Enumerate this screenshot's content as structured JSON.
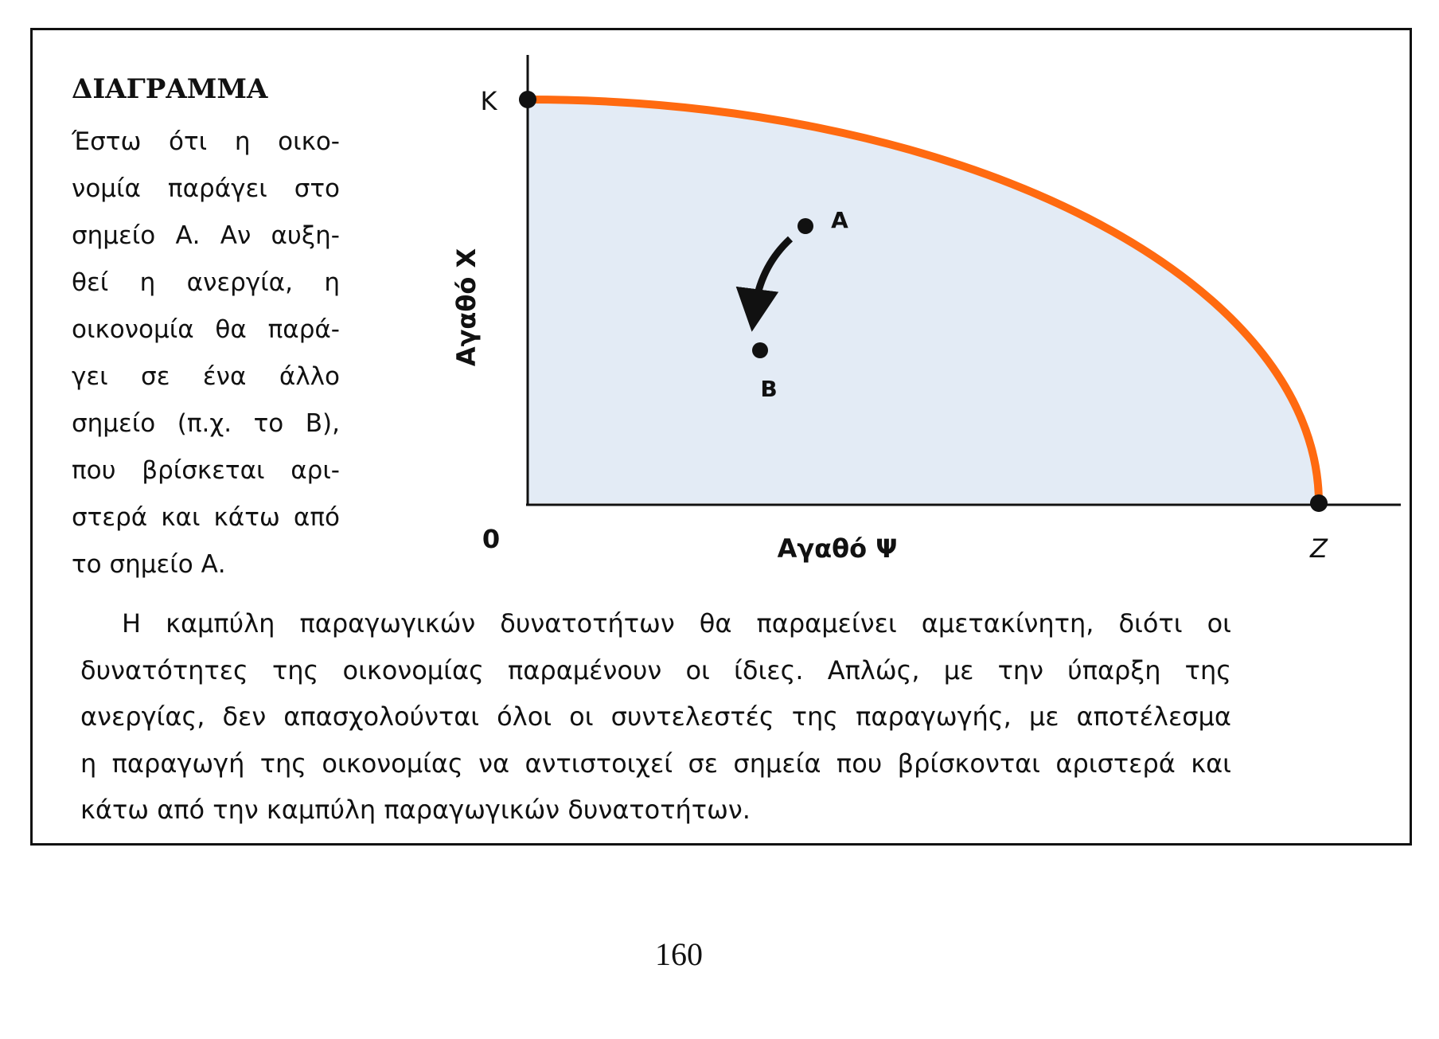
{
  "heading": "ΔΙΑΓΡΑΜΜΑ",
  "side_text": [
    "Έστω ότι η οικο-",
    "νομία παράγει στο",
    "σημείο Α. Αν αυξη-",
    "θεί η ανεργία, η",
    "οικονομία θα παρά-",
    "γει σε ένα άλλο",
    "σημείο (π.χ. το Β),",
    "που βρίσκεται αρι-",
    "στερά και κάτω από",
    "το σημείο Α."
  ],
  "diagram": {
    "y_axis_label": "Αγαθό Χ",
    "x_axis_label": "Αγαθό Ψ",
    "origin": "0",
    "point_k": "K",
    "point_z": "Z",
    "point_a": "A",
    "point_b": "B"
  },
  "body_text": [
    "Η καμπύλη παραγωγικών δυνατοτήτων θα παραμείνει αμετακίνητη, διότι οι",
    "δυνατότητες της οικονομίας παραμένουν οι ίδιες. Απλώς, με την ύπαρξη της",
    "ανεργίας, δεν απασχολούνται όλοι οι συντελεστές της παραγωγής, με αποτέλεσμα",
    "η παραγωγή της οικονομίας να αντιστοιχεί σε σημεία που βρίσκονται αριστερά και",
    "κάτω από την καμπύλη παραγωγικών δυνατοτήτων."
  ],
  "page_number": "160"
}
